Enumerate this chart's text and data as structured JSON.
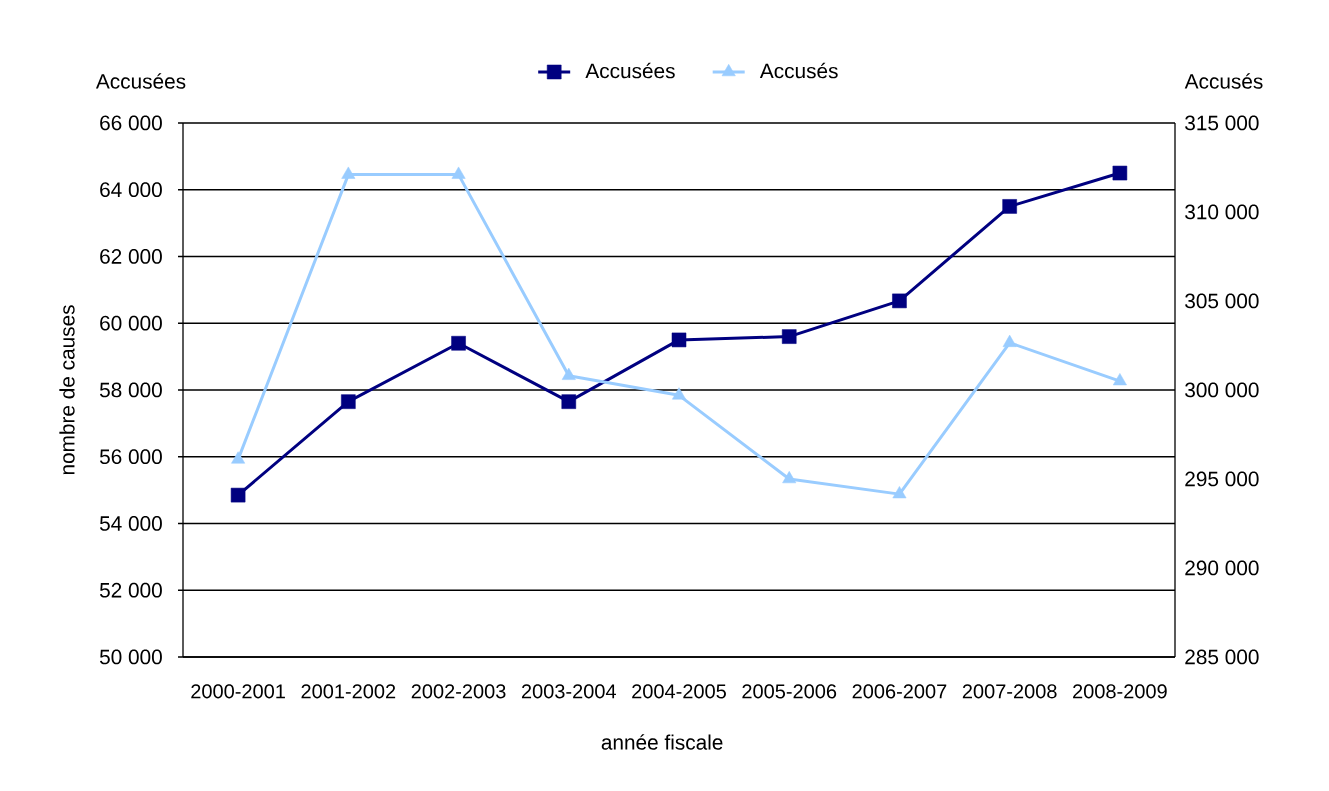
{
  "chart_data": {
    "type": "line",
    "xlabel": "année fiscale",
    "ylabel": "nombre de causes",
    "y2label": "Accusés",
    "annotations": [
      "Accusées"
    ],
    "categories": [
      "2000-2001",
      "2001-2002",
      "2002-2003",
      "2003-2004",
      "2004-2005",
      "2005-2006",
      "2006-2007",
      "2007-2008",
      "2008-2009"
    ],
    "series": [
      {
        "name": "Accusées",
        "color": "#000080",
        "marker": "square",
        "values": [
          54850,
          57650,
          59400,
          57650,
          59500,
          59600,
          60670,
          63500,
          64500
        ]
      },
      {
        "name": "Accusés",
        "color": "#99ccff",
        "marker": "triangle",
        "axis": "y2",
        "values": [
          296100,
          312100,
          312100,
          300800,
          299700,
          295000,
          294150,
          302650,
          300500
        ]
      }
    ],
    "ylim": [
      50000,
      66000
    ],
    "yticks": [
      {
        "value": 50000,
        "label": "50 000"
      },
      {
        "value": 52000,
        "label": "52 000"
      },
      {
        "value": 54000,
        "label": "54 000"
      },
      {
        "value": 56000,
        "label": "56 000"
      },
      {
        "value": 58000,
        "label": "58 000"
      },
      {
        "value": 60000,
        "label": "60 000"
      },
      {
        "value": 62000,
        "label": "62 000"
      },
      {
        "value": 64000,
        "label": "64 000"
      },
      {
        "value": 66000,
        "label": "66 000"
      }
    ],
    "y2lim": [
      285000,
      315000
    ],
    "y2ticks": [
      {
        "value": 285000,
        "label": "285 000"
      },
      {
        "value": 290000,
        "label": "290 000"
      },
      {
        "value": 295000,
        "label": "295 000"
      },
      {
        "value": 300000,
        "label": "300 000"
      },
      {
        "value": 305000,
        "label": "305 000"
      },
      {
        "value": 310000,
        "label": "310 000"
      },
      {
        "value": 315000,
        "label": "315 000"
      }
    ],
    "grid": "y",
    "legend": "top",
    "line_style": "solid"
  }
}
